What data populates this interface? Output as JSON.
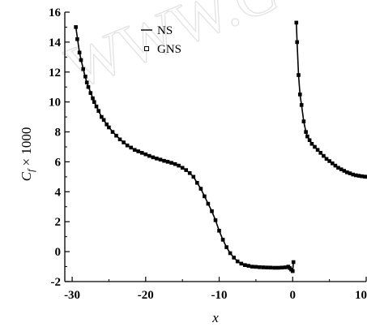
{
  "chart_data": {
    "type": "scatter",
    "title": "",
    "xlabel": "x",
    "ylabel_main": "C",
    "ylabel_sub": "f",
    "ylabel_rest": " × 1000",
    "xlim": [
      -31,
      10
    ],
    "ylim": [
      -2,
      16
    ],
    "xticks": [
      -30,
      -20,
      -10,
      0,
      10
    ],
    "yticks": [
      -2,
      0,
      2,
      4,
      6,
      8,
      10,
      12,
      14,
      16
    ],
    "grid": false,
    "legend": {
      "placement": "top-center"
    },
    "watermark": "WWW.C",
    "series": [
      {
        "name": "NS",
        "style": "line",
        "segments": [
          {
            "x": [
              -29.5,
              -29,
              -28.5,
              -28,
              -27,
              -26,
              -25,
              -24,
              -23,
              -22,
              -21,
              -20,
              -19,
              -18,
              -17,
              -16,
              -15,
              -14.5,
              -14,
              -13.5,
              -13,
              -12.5,
              -12,
              -11.5,
              -11,
              -10.5,
              -10,
              -9.5,
              -9,
              -8.5,
              -8,
              -7.5,
              -7,
              -6,
              -5,
              -4,
              -3,
              -2,
              -1,
              -0.6,
              -0.4,
              -0.2,
              0,
              0.1
            ],
            "y": [
              15.0,
              13.3,
              12.2,
              11.3,
              10.0,
              9.0,
              8.3,
              7.75,
              7.3,
              6.95,
              6.7,
              6.5,
              6.3,
              6.15,
              6.0,
              5.85,
              5.6,
              5.45,
              5.25,
              5.0,
              4.6,
              4.2,
              3.7,
              3.2,
              2.7,
              2.1,
              1.4,
              0.8,
              0.3,
              -0.1,
              -0.4,
              -0.65,
              -0.8,
              -0.95,
              -1.02,
              -1.05,
              -1.07,
              -1.08,
              -1.05,
              -1.0,
              -1.1,
              -1.2,
              -1.3,
              -0.7
            ]
          },
          {
            "x": [
              0.5,
              0.6,
              0.8,
              1.0,
              1.2,
              1.5,
              1.8,
              2.0,
              2.5,
              3.0,
              4.0,
              5.0,
              6.0,
              7.0,
              8.0,
              9.0,
              10.0
            ],
            "y": [
              15.3,
              14.0,
              11.8,
              10.5,
              9.8,
              8.7,
              8.0,
              7.7,
              7.3,
              7.0,
              6.5,
              6.05,
              5.7,
              5.4,
              5.2,
              5.07,
              5.0
            ]
          }
        ]
      },
      {
        "name": "GNS",
        "style": "markers",
        "segments": [
          {
            "x": [
              -29.5,
              -29.3,
              -29.0,
              -28.8,
              -28.5,
              -28.2,
              -28.0,
              -27.8,
              -27.5,
              -27.2,
              -27.0,
              -26.7,
              -26.4,
              -26.0,
              -25.7,
              -25.3,
              -25.0,
              -24.5,
              -24.0,
              -23.5,
              -23.0,
              -22.5,
              -22.0,
              -21.5,
              -21.0,
              -20.5,
              -20.0,
              -19.5,
              -19.0,
              -18.5,
              -18.0,
              -17.5,
              -17.0,
              -16.5,
              -16.0,
              -15.5,
              -15.0,
              -14.5,
              -14.0,
              -13.5,
              -13.0,
              -12.5,
              -12.0,
              -11.5,
              -11.0,
              -10.5,
              -10.0,
              -9.5,
              -9.0,
              -8.5,
              -8.0,
              -7.5,
              -7.0,
              -6.5,
              -6.0,
              -5.5,
              -5.0,
              -4.5,
              -4.0,
              -3.5,
              -3.0,
              -2.5,
              -2.0,
              -1.5,
              -1.0,
              -0.6,
              -0.4,
              -0.2,
              0.0,
              0.1
            ],
            "y": [
              15.0,
              14.2,
              13.3,
              12.8,
              12.2,
              11.7,
              11.3,
              11.0,
              10.6,
              10.25,
              10.0,
              9.7,
              9.4,
              9.0,
              8.8,
              8.5,
              8.3,
              8.0,
              7.75,
              7.5,
              7.3,
              7.1,
              6.95,
              6.8,
              6.7,
              6.6,
              6.5,
              6.4,
              6.3,
              6.22,
              6.15,
              6.07,
              6.0,
              5.93,
              5.85,
              5.75,
              5.6,
              5.45,
              5.25,
              5.0,
              4.6,
              4.2,
              3.7,
              3.2,
              2.7,
              2.1,
              1.4,
              0.8,
              0.3,
              -0.1,
              -0.4,
              -0.65,
              -0.8,
              -0.9,
              -0.95,
              -1.0,
              -1.02,
              -1.04,
              -1.05,
              -1.06,
              -1.07,
              -1.08,
              -1.08,
              -1.07,
              -1.05,
              -1.0,
              -1.1,
              -1.2,
              -1.3,
              -0.7
            ]
          },
          {
            "x": [
              0.5,
              0.6,
              0.8,
              1.0,
              1.2,
              1.5,
              1.8,
              2.0,
              2.3,
              2.6,
              3.0,
              3.4,
              3.8,
              4.2,
              4.6,
              5.0,
              5.4,
              5.8,
              6.2,
              6.6,
              7.0,
              7.4,
              7.8,
              8.2,
              8.6,
              9.0,
              9.4,
              9.8,
              10.0
            ],
            "y": [
              15.3,
              14.0,
              11.8,
              10.5,
              9.8,
              8.7,
              8.0,
              7.7,
              7.45,
              7.2,
              7.0,
              6.8,
              6.6,
              6.4,
              6.2,
              6.05,
              5.9,
              5.75,
              5.6,
              5.5,
              5.4,
              5.3,
              5.23,
              5.15,
              5.1,
              5.07,
              5.04,
              5.01,
              5.0
            ]
          }
        ]
      }
    ]
  }
}
